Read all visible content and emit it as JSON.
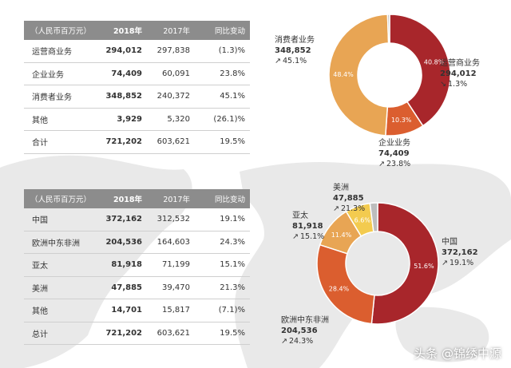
{
  "segment_table": {
    "headers": [
      "（人民币百万元）",
      "2018年",
      "2017年",
      "同比变动"
    ],
    "rows": [
      [
        "运营商业务",
        "294,012",
        "297,838",
        "(1.3)%"
      ],
      [
        "企业业务",
        "74,409",
        "60,091",
        "23.8%"
      ],
      [
        "消费者业务",
        "348,852",
        "240,372",
        "45.1%"
      ],
      [
        "其他",
        "3,929",
        "5,320",
        "(26.1)%"
      ],
      [
        "合计",
        "721,202",
        "603,621",
        "19.5%"
      ]
    ]
  },
  "region_table": {
    "headers": [
      "（人民币百万元）",
      "2018年",
      "2017年",
      "同比变动"
    ],
    "rows": [
      [
        "中国",
        "372,162",
        "312,532",
        "19.1%"
      ],
      [
        "欧洲中东非洲",
        "204,536",
        "164,603",
        "24.3%"
      ],
      [
        "亚太",
        "81,918",
        "71,199",
        "15.1%"
      ],
      [
        "美洲",
        "47,885",
        "39,470",
        "21.3%"
      ],
      [
        "其他",
        "14,701",
        "15,817",
        "(7.1)%"
      ],
      [
        "总计",
        "721,202",
        "603,621",
        "19.5%"
      ]
    ]
  },
  "segment_labels": {
    "consumer": {
      "name": "消费者业务",
      "value": "348,852",
      "change": "45.1%",
      "arrow": "↗"
    },
    "carrier": {
      "name": "运营商业务",
      "value": "294,012",
      "change": "1.3%",
      "arrow": "↘"
    },
    "enterprise": {
      "name": "企业业务",
      "value": "74,409",
      "change": "23.8%",
      "arrow": "↗"
    }
  },
  "region_labels": {
    "americas": {
      "name": "美洲",
      "value": "47,885",
      "change": "21.3%",
      "arrow": "↗"
    },
    "apac": {
      "name": "亚太",
      "value": "81,918",
      "change": "15.1%",
      "arrow": "↗"
    },
    "china": {
      "name": "中国",
      "value": "372,162",
      "change": "19.1%",
      "arrow": "↗"
    },
    "emea": {
      "name": "欧洲中东非洲",
      "value": "204,536",
      "change": "24.3%",
      "arrow": "↗"
    }
  },
  "watermark": "头条 @锦绣中源",
  "chart_data": [
    {
      "type": "pie",
      "variant": "donut",
      "categories": [
        "运营商业务",
        "企业业务",
        "消费者业务",
        "其他"
      ],
      "values": [
        294012,
        74409,
        348852,
        3929
      ],
      "slice_labels": [
        "40.8%",
        "10.3%",
        "48.4%",
        ""
      ],
      "colors": [
        "#a8262b",
        "#db5e2f",
        "#e8a554",
        "#bdbdbd"
      ]
    },
    {
      "type": "pie",
      "variant": "donut",
      "categories": [
        "中国",
        "欧洲中东非洲",
        "亚太",
        "美洲",
        "其他"
      ],
      "values": [
        372162,
        204536,
        81918,
        47885,
        14701
      ],
      "slice_labels": [
        "51.6%",
        "28.4%",
        "11.4%",
        "6.6%",
        ""
      ],
      "colors": [
        "#a8262b",
        "#db5e2f",
        "#e8a554",
        "#f3cb4f",
        "#bdbdbd"
      ]
    }
  ]
}
